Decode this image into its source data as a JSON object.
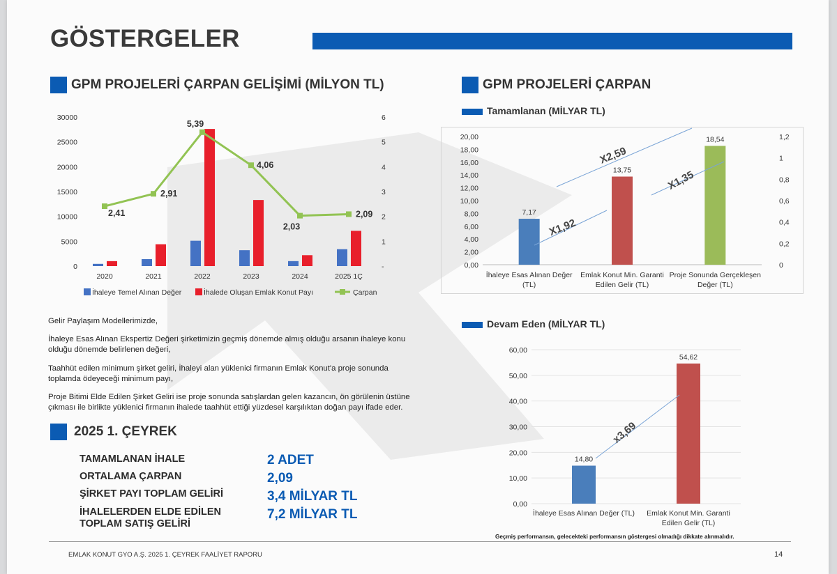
{
  "header": {
    "title": "GÖSTERGELER"
  },
  "left_chart": {
    "heading": "GPM PROJELERİ ÇARPAN GELİŞİMİ (MİLYON TL)",
    "chart_data": {
      "type": "bar+line",
      "categories": [
        "2020",
        "2021",
        "2022",
        "2023",
        "2024",
        "2025 1Ç"
      ],
      "y_left_ticks": [
        "30000",
        "25000",
        "20000",
        "15000",
        "10000",
        "5000",
        "0"
      ],
      "y_right_ticks": [
        "6",
        "5",
        "4",
        "3",
        "2",
        "1",
        "-"
      ],
      "ylim_left": [
        0,
        30000
      ],
      "ylim_right": [
        0,
        6
      ],
      "series": [
        {
          "name": "İhaleye Temel Alınan Değer",
          "axis": "left",
          "color": "#4472c4",
          "values": [
            450,
            1400,
            5100,
            3200,
            1000,
            3400
          ]
        },
        {
          "name": "İhalede Oluşan Emlak Konut Payı",
          "axis": "left",
          "color": "#e81f2b",
          "values": [
            1000,
            4400,
            27600,
            13300,
            2200,
            7100
          ]
        },
        {
          "name": "Çarpan",
          "axis": "right",
          "color": "#92c353",
          "values": [
            2.41,
            2.91,
            5.39,
            4.06,
            2.03,
            2.09
          ],
          "labels": [
            "2,41",
            "2,91",
            "5,39",
            "4,06",
            "2,03",
            "2,09"
          ]
        }
      ]
    }
  },
  "right_section": {
    "heading": "GPM PROJELERİ ÇARPAN"
  },
  "completed_chart": {
    "heading": "Tamamlanan (MİLYAR TL)",
    "chart_data": {
      "type": "bar",
      "categories": [
        [
          "İhaleye Esas Alınan Değer",
          "(TL)"
        ],
        [
          "Emlak Konut Min. Garanti",
          "Edilen Gelir (TL)"
        ],
        [
          "Proje Sonunda Gerçekleşen",
          "Değer (TL)"
        ]
      ],
      "values": [
        7.17,
        13.75,
        18.54
      ],
      "value_labels": [
        "7,17",
        "13,75",
        "18,54"
      ],
      "colors": [
        "#4a7ebb",
        "#c0504d",
        "#9bbb59"
      ],
      "ylim": [
        0,
        20
      ],
      "y_left_ticks": [
        "20,00",
        "18,00",
        "16,00",
        "14,00",
        "12,00",
        "10,00",
        "8,00",
        "6,00",
        "4,00",
        "2,00",
        "0,00"
      ],
      "y_right_ticks": [
        "1,2",
        "1",
        "0,8",
        "0,6",
        "0,4",
        "0,2",
        "0"
      ],
      "multipliers": [
        "X1,92",
        "X2,59",
        "X1,35"
      ]
    }
  },
  "ongoing_chart": {
    "heading": "Devam Eden (MİLYAR TL)",
    "chart_data": {
      "type": "bar",
      "categories": [
        [
          "İhaleye Esas Alınan Değer (TL)"
        ],
        [
          "Emlak Konut Min. Garanti",
          "Edilen Gelir (TL)"
        ]
      ],
      "values": [
        14.8,
        54.62
      ],
      "value_labels": [
        "14,80",
        "54,62"
      ],
      "colors": [
        "#4a7ebb",
        "#c0504d"
      ],
      "ylim": [
        0,
        60
      ],
      "y_ticks": [
        "60,00",
        "50,00",
        "40,00",
        "30,00",
        "20,00",
        "10,00",
        "0,00"
      ],
      "multipliers": [
        "x3,69"
      ]
    }
  },
  "description": {
    "intro": "Gelir Paylaşım Modellerimizde,",
    "p1": "İhaleye Esas Alınan Ekspertiz Değeri  şirketimizin geçmiş dönemde almış olduğu arsanın ihaleye konu olduğu dönemde belirlenen değeri,",
    "p2": "Taahhüt edilen minimum şirket geliri, İhaleyi alan yüklenici firmanın Emlak Konut'a proje sonunda toplamda ödeyeceği minimum payı,",
    "p3": "Proje Bitimi Elde Edilen Şirket Geliri ise proje sonunda satışlardan gelen kazancın, ön görülenin üstüne çıkması ile birlikte yüklenici firmanın ihalede taahhüt ettiği yüzdesel karşılıktan doğan payı ifade eder."
  },
  "quarter": {
    "heading": "2025 1. ÇEYREK",
    "rows": [
      {
        "label": "TAMAMLANAN İHALE",
        "value": "2 ADET"
      },
      {
        "label": "ORTALAMA ÇARPAN",
        "value": "2,09"
      },
      {
        "label": "ŞİRKET PAYI TOPLAM GELİRİ",
        "value": "3,4 MİLYAR TL"
      },
      {
        "label": "İHALELERDEN ELDE EDİLEN",
        "label2": "TOPLAM SATIŞ GELİRİ",
        "value": "7,2 MİLYAR TL"
      }
    ]
  },
  "footer": {
    "disclaimer": "Geçmiş performansın, gelecekteki performansın göstergesi olmadığı dikkate alınmalıdır.",
    "report": "EMLAK KONUT GYO A.Ş. 2025 1. ÇEYREK FAALİYET RAPORU",
    "page": "14"
  }
}
